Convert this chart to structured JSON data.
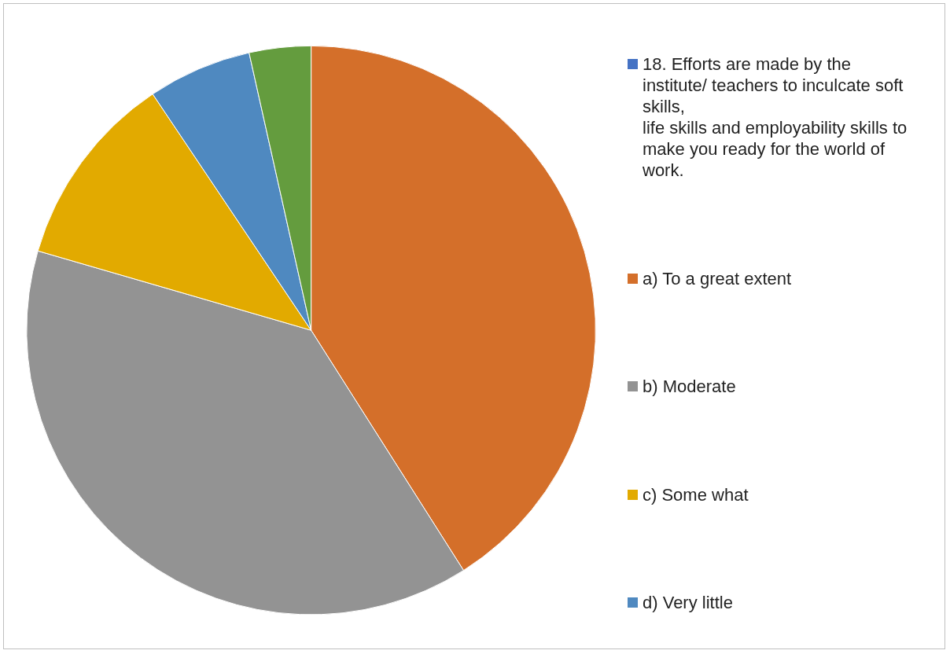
{
  "chart_data": {
    "type": "pie",
    "categories": [
      "18. Efforts are made by the institute/ teachers to inculcate soft skills,\n life skills and employability skills to make you ready for the world of work.",
      "a) To a great extent",
      "b) Moderate",
      "c) Some what",
      "d) Very little",
      null
    ],
    "values": [
      0,
      41,
      38.5,
      11.1,
      5.9,
      3.5
    ],
    "colors": [
      "#4472c4",
      "#d46f2a",
      "#939393",
      "#e2aa00",
      "#4f89c0",
      "#649c3e"
    ],
    "legend": "right"
  }
}
